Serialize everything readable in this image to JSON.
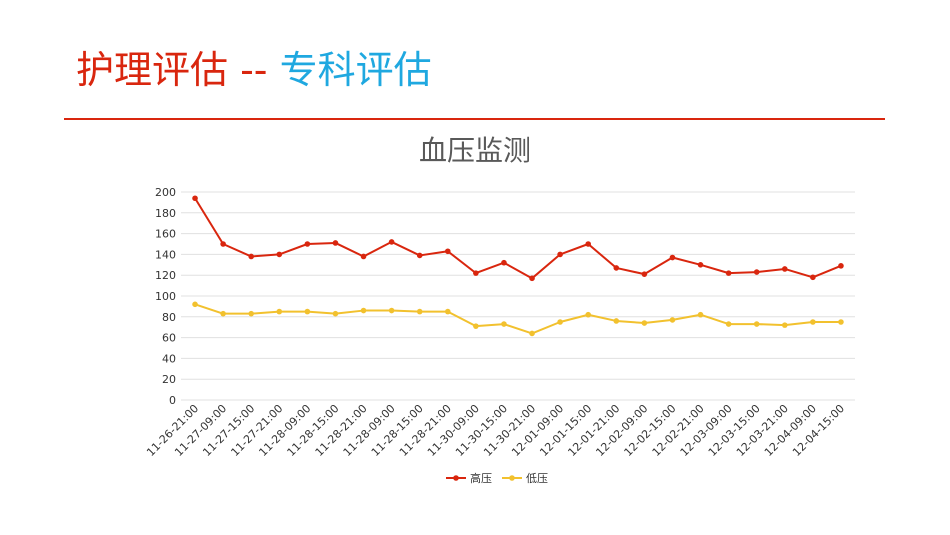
{
  "slide": {
    "title_main": "护理评估",
    "title_sep": " -- ",
    "title_sub": "专科评估",
    "colors": {
      "title_red": "#d9260e",
      "title_blue": "#1fa8e0",
      "rule": "#d9260e"
    }
  },
  "chart_data": {
    "type": "line",
    "title": "血压监测",
    "xlabel": "",
    "ylabel": "",
    "categories": [
      "11-26-21:00",
      "11-27-09:00",
      "11-27-15:00",
      "11-27-21:00",
      "11-28-09:00",
      "11-28-15:00",
      "11-28-21:00",
      "11-28-09:00",
      "11-28-15:00",
      "11-28-21:00",
      "11-30-09:00",
      "11-30-15:00",
      "11-30-21:00",
      "12-01-09:00",
      "12-01-15:00",
      "12-01-21:00",
      "12-02-09:00",
      "12-02-15:00",
      "12-02-21:00",
      "12-03-09:00",
      "12-03-15:00",
      "12-03-21:00",
      "12-04-09:00",
      "12-04-15:00"
    ],
    "series": [
      {
        "name": "高压",
        "color": "#d9260e",
        "values": [
          194,
          150,
          138,
          140,
          150,
          151,
          138,
          152,
          139,
          143,
          122,
          132,
          117,
          140,
          150,
          127,
          121,
          137,
          130,
          122,
          123,
          126,
          118,
          129
        ]
      },
      {
        "name": "低压",
        "color": "#f2c12e",
        "values": [
          92,
          83,
          83,
          85,
          85,
          83,
          86,
          86,
          85,
          85,
          71,
          73,
          64,
          75,
          82,
          76,
          74,
          77,
          82,
          73,
          73,
          72,
          75,
          75
        ]
      }
    ],
    "ylim": [
      0,
      200
    ],
    "yticks": [
      0,
      20,
      40,
      60,
      80,
      100,
      120,
      140,
      160,
      180,
      200
    ],
    "grid": true,
    "legend_position": "bottom"
  }
}
